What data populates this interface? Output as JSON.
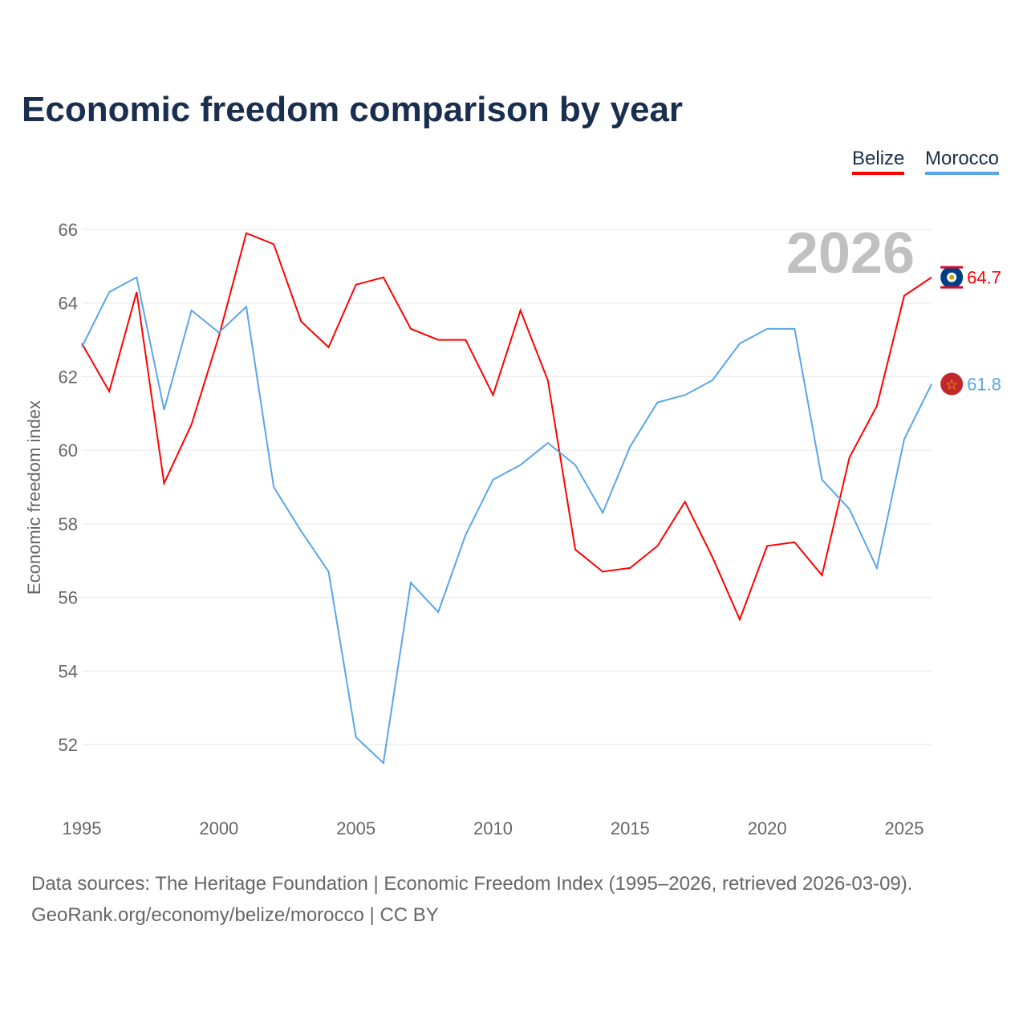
{
  "title": "Economic freedom comparison by year",
  "footer": {
    "line1": "Data sources: The Heritage Foundation | Economic Freedom Index (1995–2026, retrieved 2026-03-09).",
    "line2": "GeoRank.org/economy/belize/morocco | CC BY"
  },
  "chart_data": {
    "type": "line",
    "title": "Economic freedom comparison by year",
    "ylabel": "Economic freedom index",
    "xlabel": "",
    "year_watermark": "2026",
    "ylim": [
      50.5,
      67
    ],
    "xlim": [
      1995,
      2026
    ],
    "yticks": [
      52,
      54,
      56,
      58,
      60,
      62,
      64,
      66
    ],
    "xticks": [
      1995,
      2000,
      2005,
      2010,
      2015,
      2020,
      2025
    ],
    "grid": true,
    "legend": "top-right",
    "x": [
      1995,
      1996,
      1997,
      1998,
      1999,
      2000,
      2001,
      2002,
      2003,
      2004,
      2005,
      2006,
      2007,
      2008,
      2009,
      2010,
      2011,
      2012,
      2013,
      2014,
      2015,
      2016,
      2017,
      2018,
      2019,
      2020,
      2021,
      2022,
      2023,
      2024,
      2025,
      2026
    ],
    "series": [
      {
        "name": "Belize",
        "color": "#ff0000",
        "end_label": "64.7",
        "flag": "belize-flag",
        "values": [
          62.9,
          61.6,
          64.3,
          59.1,
          60.7,
          63.1,
          65.9,
          65.6,
          63.5,
          62.8,
          64.5,
          64.7,
          63.3,
          63.0,
          63.0,
          61.5,
          63.8,
          61.9,
          57.3,
          56.7,
          56.8,
          57.4,
          58.6,
          57.1,
          55.4,
          57.4,
          57.5,
          56.6,
          59.8,
          61.2,
          64.2,
          64.7
        ]
      },
      {
        "name": "Morocco",
        "color": "#5aa5e8",
        "end_label": "61.8",
        "flag": "morocco-flag",
        "values": [
          62.8,
          64.3,
          64.7,
          61.1,
          63.8,
          63.2,
          63.9,
          59.0,
          57.8,
          56.7,
          52.2,
          51.5,
          56.4,
          55.6,
          57.7,
          59.2,
          59.6,
          60.2,
          59.6,
          58.3,
          60.1,
          61.3,
          61.5,
          61.9,
          62.9,
          63.3,
          63.3,
          59.2,
          58.4,
          56.8,
          60.3,
          61.8
        ]
      }
    ]
  }
}
